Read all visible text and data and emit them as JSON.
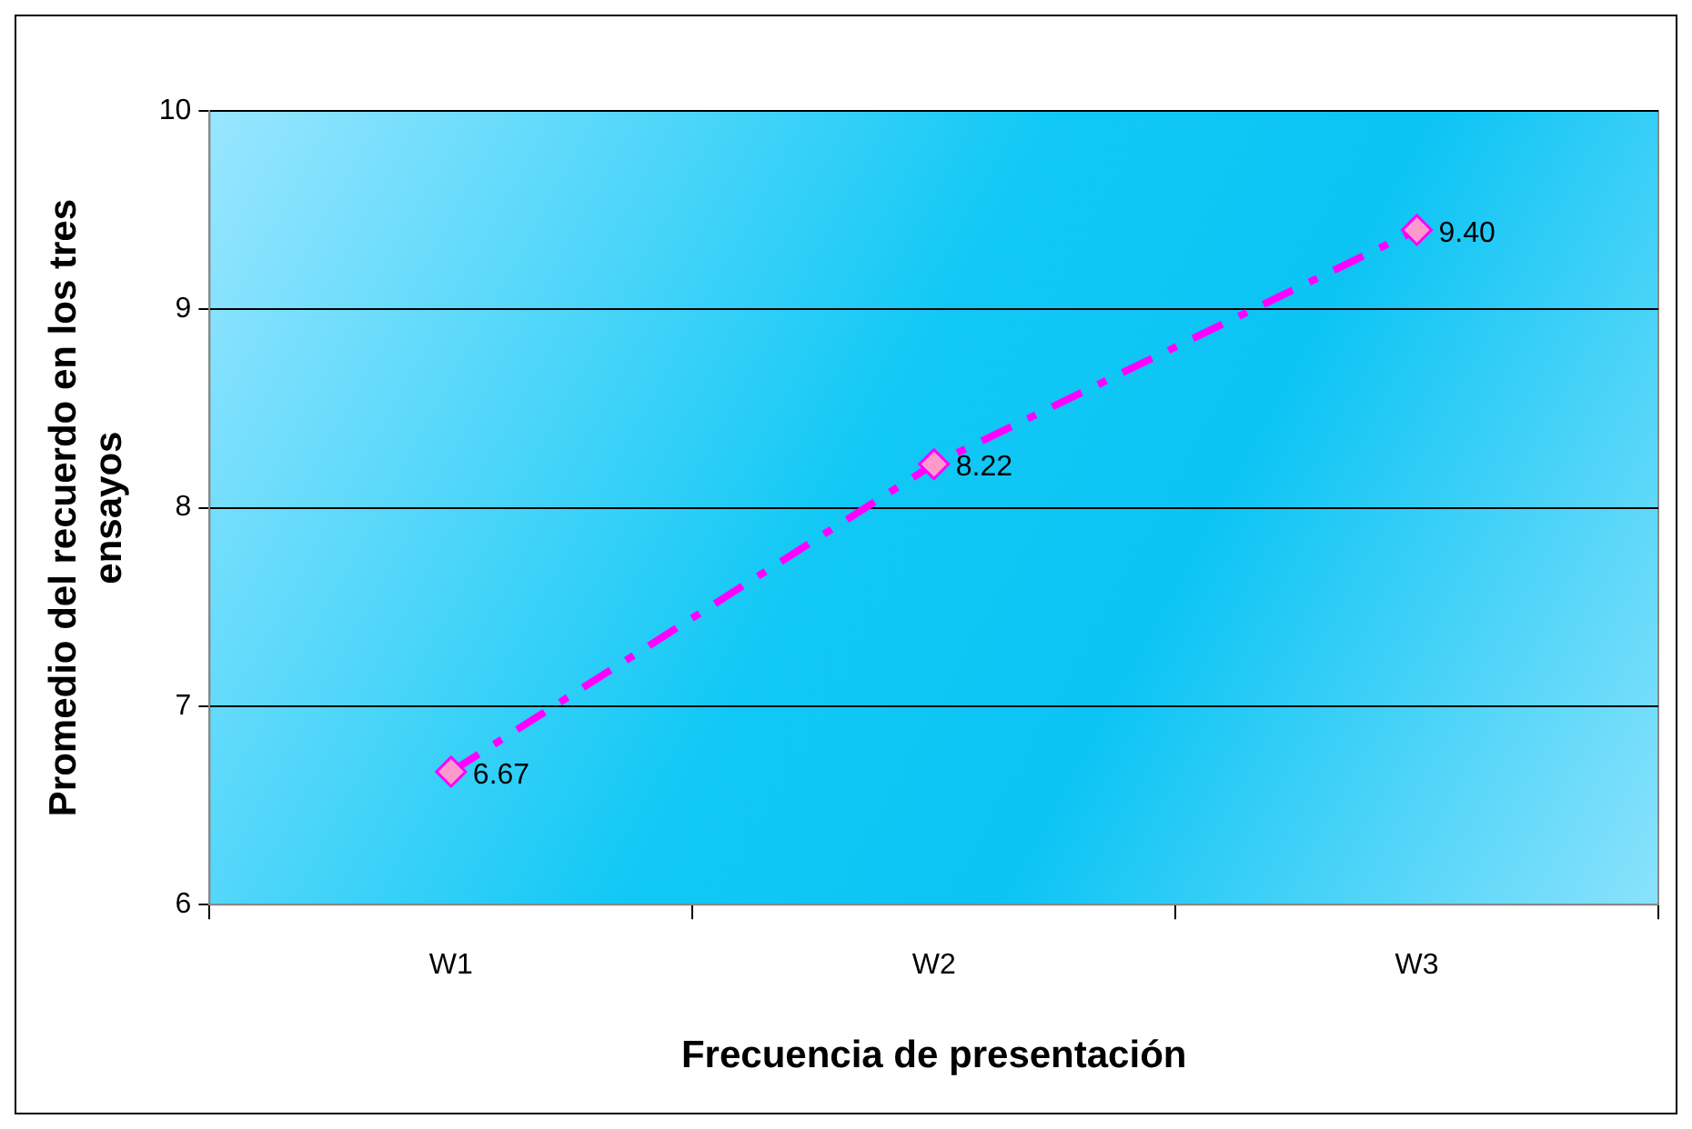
{
  "chart_data": {
    "type": "line",
    "xlabel": "Frecuencia de presentación",
    "ylabel": "Promedio del recuerdo en los tres ensayos",
    "categories": [
      "W1",
      "W2",
      "W3"
    ],
    "series": [
      {
        "color": "#ff00ff",
        "values": [
          6.67,
          8.22,
          9.4
        ],
        "value_labels": [
          "6.67",
          "8.22",
          "9.40"
        ]
      }
    ],
    "ylim": [
      6,
      10
    ],
    "yticks": [
      6,
      7,
      8,
      9,
      10
    ],
    "grid": "y",
    "legend": false,
    "marker": "diamond",
    "line_style": "dashed"
  }
}
